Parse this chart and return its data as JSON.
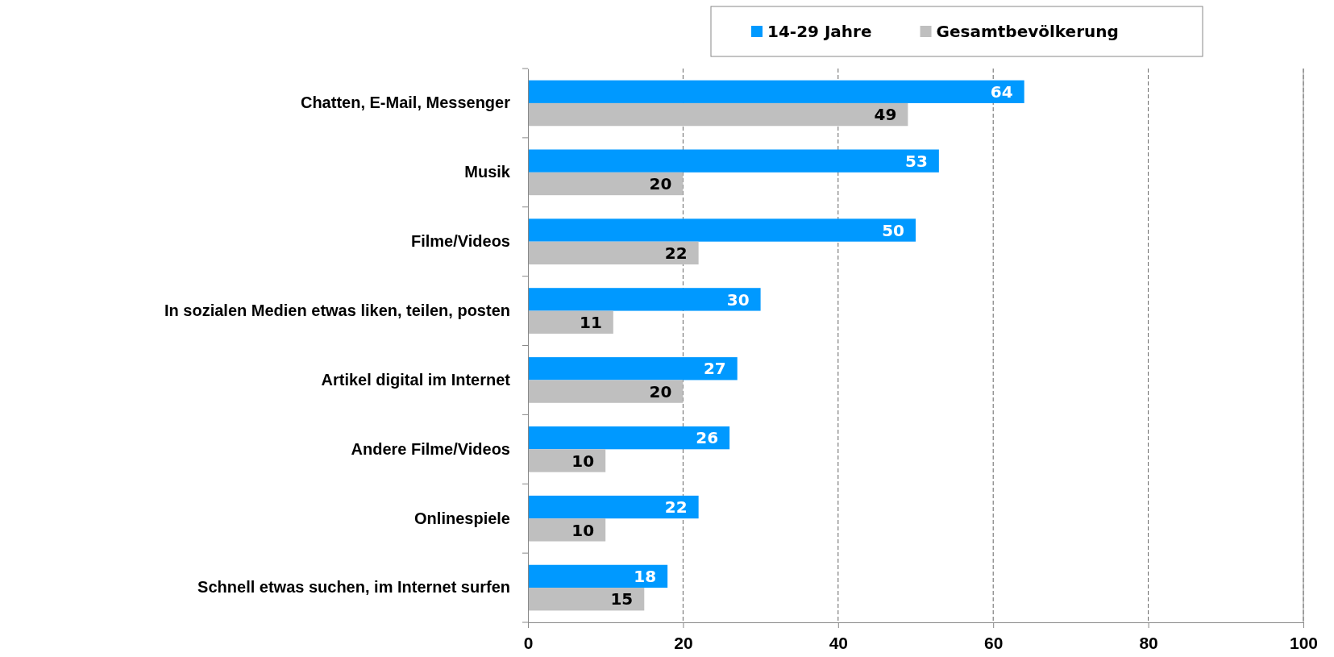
{
  "chart_data": {
    "type": "bar",
    "orientation": "horizontal",
    "categories": [
      "Chatten, E-Mail, Messenger",
      "Musik",
      "Filme/Videos",
      "In sozialen Medien etwas liken, teilen, posten",
      "Artikel digital im Internet",
      "Andere Filme/Videos",
      "Onlinespiele",
      "Schnell etwas suchen, im Internet surfen"
    ],
    "series": [
      {
        "name": "14-29 Jahre",
        "color": "#0099ff",
        "values": [
          64,
          53,
          50,
          30,
          27,
          26,
          22,
          18
        ]
      },
      {
        "name": "Gesamtbevölkerung",
        "color": "#bfbfbf",
        "values": [
          49,
          20,
          22,
          11,
          20,
          10,
          10,
          15
        ]
      }
    ],
    "xlim": [
      0,
      100
    ],
    "xticks": [
      0,
      20,
      40,
      60,
      80,
      100
    ],
    "grid": "x",
    "legend": "top",
    "data_labels": true
  }
}
